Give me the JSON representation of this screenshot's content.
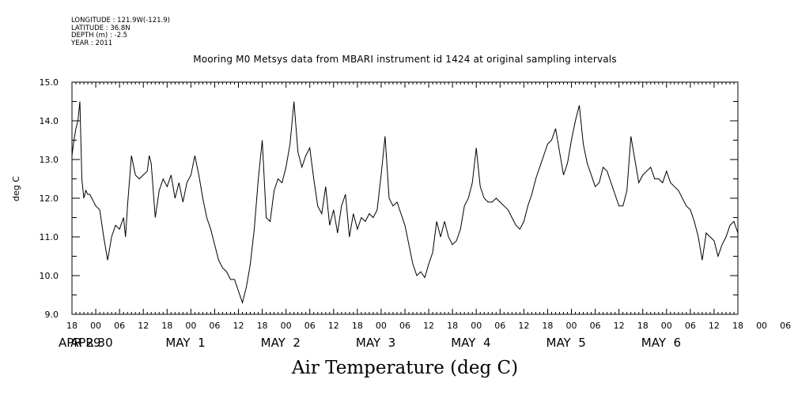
{
  "header": {
    "longitude": "LONGITUDE : 121.9W(-121.9)",
    "latitude": "LATITUDE : 36.8N",
    "depth": "DEPTH (m) : -2.5",
    "year": "YEAR : 2011"
  },
  "chart_data": {
    "type": "line",
    "title": "Mooring M0 Metsys data from MBARI instrument id 1424 at original sampling intervals",
    "xlabel": "Air Temperature (deg C)",
    "ylabel": "deg C",
    "ylim": [
      9.0,
      15.0
    ],
    "y_ticks": [
      "9.0",
      "10.0",
      "11.0",
      "12.0",
      "13.0",
      "14.0",
      "15.0"
    ],
    "x_range_hours": [
      0,
      168
    ],
    "x_hour_labels": [
      "18",
      "00",
      "06",
      "12",
      "18",
      "00",
      "06",
      "12",
      "18",
      "00",
      "06",
      "12",
      "18",
      "00",
      "06",
      "12",
      "18",
      "00",
      "06",
      "12",
      "18",
      "00",
      "06",
      "12",
      "18",
      "00",
      "06",
      "12",
      "18",
      "00",
      "06",
      "12",
      "18"
    ],
    "x_day_labels": [
      "APR 29",
      "APR 30",
      "MAY  1",
      "MAY  2",
      "MAY  3",
      "MAY  4",
      "MAY  5",
      "MAY  6"
    ],
    "grid": false,
    "series": [
      {
        "x": [
          0,
          0.5,
          1,
          1.5,
          2,
          2.5,
          3,
          3.5,
          4,
          4.5,
          5,
          6,
          7,
          8,
          9,
          10,
          11,
          12,
          13,
          13.5,
          14,
          15,
          16,
          17,
          18,
          19,
          19.5,
          20,
          21,
          22,
          23,
          24,
          25,
          26,
          27,
          28,
          29,
          30,
          31,
          32,
          33,
          34,
          35,
          36,
          37,
          38,
          39,
          40,
          41,
          42,
          43,
          44,
          45,
          46,
          47,
          48,
          49,
          50,
          51,
          52,
          53,
          54,
          55,
          56,
          57,
          58,
          59,
          60,
          61,
          62,
          63,
          64,
          65,
          66,
          67,
          68,
          69,
          70,
          71,
          72,
          73,
          74,
          75,
          76,
          77,
          78,
          79,
          80,
          81,
          82,
          83,
          84,
          85,
          86,
          87,
          88,
          89,
          90,
          91,
          92,
          93,
          94,
          95,
          96,
          97,
          98,
          99,
          100,
          101,
          102,
          103,
          104,
          105,
          106,
          107,
          108,
          109,
          110,
          111,
          112,
          113,
          114,
          115,
          116,
          117,
          118,
          119,
          120,
          121,
          122,
          123,
          124,
          125,
          126,
          127,
          128,
          129,
          130,
          131,
          132,
          133,
          134,
          135,
          136,
          137,
          138,
          139,
          140,
          141,
          142,
          143,
          144,
          145,
          146,
          147,
          148,
          149,
          150,
          151,
          152,
          153,
          154,
          155,
          156,
          157,
          158,
          159,
          160,
          161,
          162,
          163,
          164,
          165,
          166,
          167,
          168
        ],
        "y": [
          13.1,
          13.5,
          13.8,
          14.0,
          14.5,
          12.5,
          12.0,
          12.2,
          12.1,
          12.1,
          12.0,
          11.8,
          11.7,
          11.0,
          10.4,
          11.0,
          11.3,
          11.2,
          11.5,
          11.0,
          11.8,
          13.1,
          12.6,
          12.5,
          12.6,
          12.7,
          13.1,
          12.9,
          11.5,
          12.2,
          12.5,
          12.3,
          12.6,
          12.0,
          12.4,
          11.9,
          12.4,
          12.6,
          13.1,
          12.6,
          12.0,
          11.5,
          11.2,
          10.8,
          10.4,
          10.2,
          10.1,
          9.9,
          9.9,
          9.6,
          9.3,
          9.7,
          10.3,
          11.2,
          12.5,
          13.5,
          11.5,
          11.4,
          12.2,
          12.5,
          12.4,
          12.8,
          13.4,
          14.5,
          13.2,
          12.8,
          13.1,
          13.3,
          12.5,
          11.8,
          11.6,
          12.3,
          11.3,
          11.7,
          11.1,
          11.8,
          12.1,
          11.0,
          11.6,
          11.2,
          11.5,
          11.4,
          11.6,
          11.5,
          11.7,
          12.6,
          13.6,
          12.0,
          11.8,
          11.9,
          11.6,
          11.3,
          10.8,
          10.3,
          10.0,
          10.1,
          9.95,
          10.3,
          10.6,
          11.4,
          11.0,
          11.4,
          11.0,
          10.8,
          10.9,
          11.2,
          11.8,
          12.0,
          12.4,
          13.3,
          12.3,
          12.0,
          11.9,
          11.9,
          12.0,
          11.9,
          11.8,
          11.7,
          11.5,
          11.3,
          11.2,
          11.4,
          11.8,
          12.1,
          12.5,
          12.8,
          13.1,
          13.4,
          13.5,
          13.8,
          13.2,
          12.6,
          12.9,
          13.5,
          14.0,
          14.4,
          13.4,
          12.9,
          12.6,
          12.3,
          12.4,
          12.8,
          12.7,
          12.4,
          12.1,
          11.8,
          11.8,
          12.2,
          13.6,
          13.0,
          12.4,
          12.6,
          12.7,
          12.8,
          12.5,
          12.5,
          12.4,
          12.7,
          12.4,
          12.3,
          12.2,
          12.0,
          11.8,
          11.7,
          11.4,
          11.0,
          10.4,
          11.1,
          11.0,
          10.9,
          10.5,
          10.8,
          11.0,
          11.3,
          11.4,
          11.1
        ]
      }
    ]
  }
}
